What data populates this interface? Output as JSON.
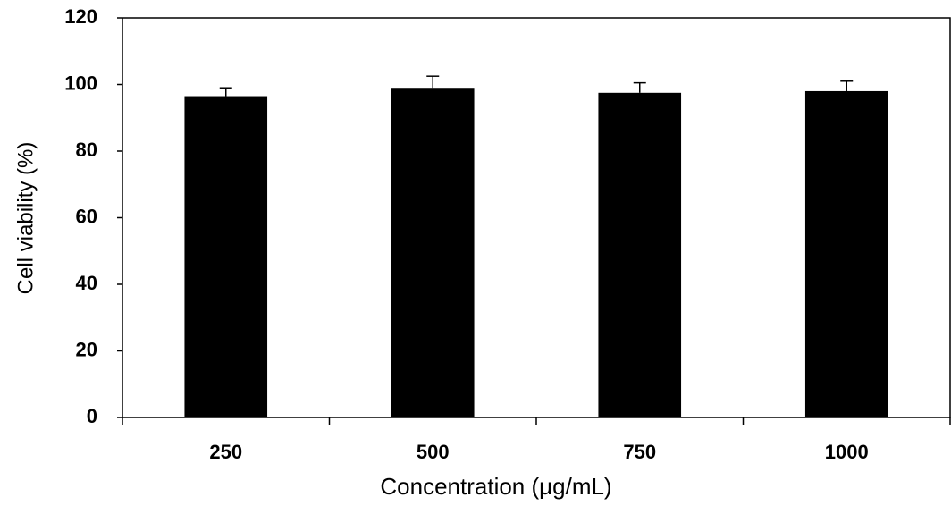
{
  "chart_data": {
    "type": "bar",
    "xlabel": "Concentration (μg/mL)",
    "ylabel": "Cell viability (%)",
    "categories": [
      "250",
      "500",
      "750",
      "1000"
    ],
    "values": [
      96.5,
      99,
      97.5,
      98
    ],
    "errors": [
      2.5,
      3.5,
      3,
      3
    ],
    "color": "#000000",
    "ylim": [
      0,
      120
    ],
    "yticks": [
      0,
      20,
      40,
      60,
      80,
      100,
      120
    ]
  }
}
